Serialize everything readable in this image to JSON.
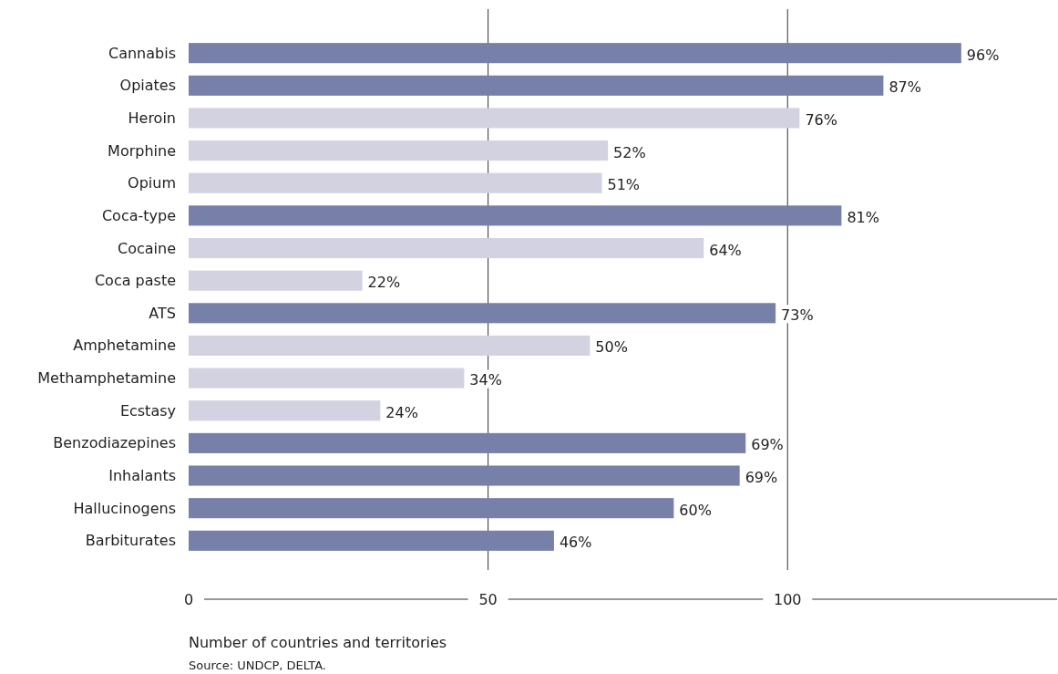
{
  "chart_data": {
    "type": "bar",
    "orientation": "horizontal",
    "xlabel": "Number of countries and territories",
    "annotations": [
      "Source: UNDCP, DELTA.",
      {
        "text": "96%",
        "x": 129,
        "y": "Cannabis"
      },
      {
        "text": "87%",
        "x": 116,
        "y": "Opiates"
      },
      {
        "text": "76%",
        "x": 102,
        "y": "Heroin"
      },
      {
        "text": "52%",
        "x": 70,
        "y": "Morphine"
      },
      {
        "text": "51%",
        "x": 69,
        "y": "Opium"
      },
      {
        "text": "81%",
        "x": 109,
        "y": "Coca-type"
      },
      {
        "text": "64%",
        "x": 86,
        "y": "Cocaine"
      },
      {
        "text": "22%",
        "x": 29,
        "y": "Coca paste"
      },
      {
        "text": "73%",
        "x": 98,
        "y": "ATS"
      },
      {
        "text": "50%",
        "x": 67,
        "y": "Amphetamine"
      },
      {
        "text": "34%",
        "x": 46,
        "y": "Methamphetamine"
      },
      {
        "text": "24%",
        "x": 32,
        "y": "Ecstasy"
      },
      {
        "text": "69%",
        "x": 93,
        "y": "Benzodiazepines"
      },
      {
        "text": "69%",
        "x": 92,
        "y": "Inhalants"
      },
      {
        "text": "60%",
        "x": 81,
        "y": "Hallucinogens"
      },
      {
        "text": "46%",
        "x": 61,
        "y": "Barbiturates"
      }
    ],
    "categories": [
      "Cannabis",
      "Opiates",
      "Heroin",
      "Morphine",
      "Opium",
      "Coca-type",
      "Cocaine",
      "Coca paste",
      "ATS",
      "Amphetamine",
      "Methamphetamine",
      "Ecstasy",
      "Benzodiazepines",
      "Inhalants",
      "Hallucinogens",
      "Barbiturates"
    ],
    "values": [
      129,
      116,
      102,
      70,
      69,
      109,
      86,
      29,
      98,
      67,
      46,
      32,
      93,
      92,
      81,
      61
    ],
    "colors": [
      "#7680a8",
      "#7680a8",
      "#d2d2e1",
      "#d2d2e1",
      "#d2d2e1",
      "#7680a8",
      "#d2d2e1",
      "#d2d2e1",
      "#7680a8",
      "#d2d2e1",
      "#d2d2e1",
      "#d2d2e1",
      "#7680a8",
      "#7680a8",
      "#7680a8",
      "#7680a8"
    ],
    "xlim": [
      0,
      145
    ],
    "xticks": [
      0,
      50,
      100
    ],
    "grid": "x"
  }
}
